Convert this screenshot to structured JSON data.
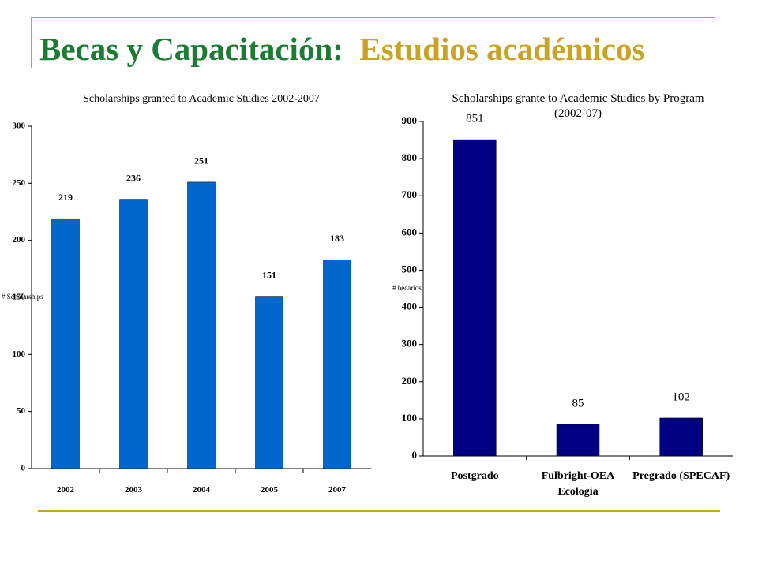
{
  "header": {
    "title_main": "Becas y Capacitación:",
    "title_sub": "Estudios académicos"
  },
  "chart_data": [
    {
      "type": "bar",
      "title": "Scholarships granted to Academic Studies 2002-2007",
      "y_label": "# Scholarships",
      "categories": [
        "2002",
        "2003",
        "2004",
        "2005",
        "2007"
      ],
      "values": [
        219,
        236,
        251,
        151,
        183
      ],
      "color": "#0066cc",
      "ylim": [
        0,
        300
      ],
      "yticks": [
        0,
        50,
        100,
        150,
        200,
        250,
        300
      ],
      "grid": false
    },
    {
      "type": "bar",
      "title": "Scholarships grante to Academic Studies by Program (2002-07)",
      "y_label": "# becarios",
      "categories": [
        "Postgrado",
        "Fulbright-OEA Ecologia",
        "Pregrado (SPECAF)"
      ],
      "values": [
        851,
        85,
        102
      ],
      "color": "#000080",
      "ylim": [
        0,
        900
      ],
      "yticks": [
        0,
        100,
        200,
        300,
        400,
        500,
        600,
        700,
        800,
        900
      ],
      "grid": false
    }
  ]
}
